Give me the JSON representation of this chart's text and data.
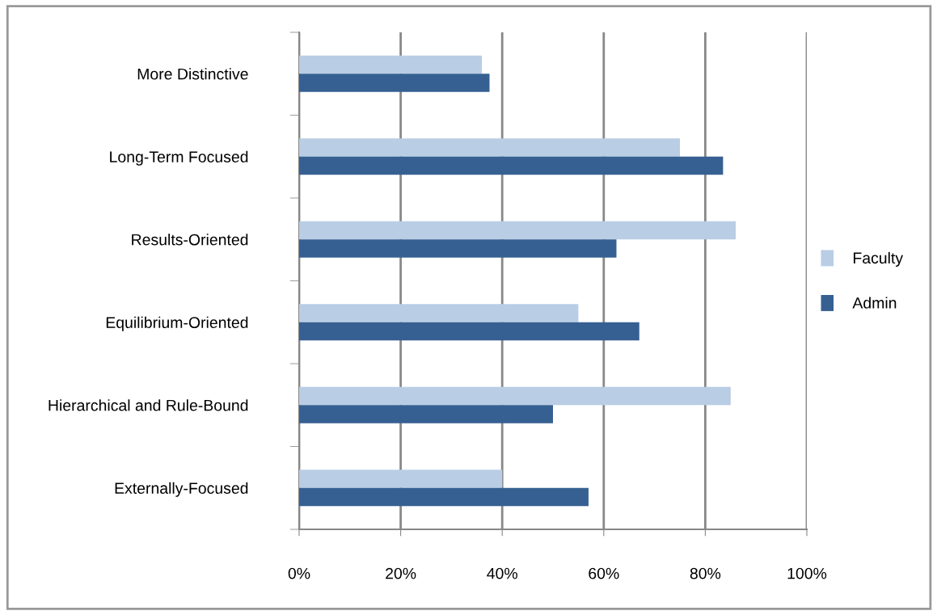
{
  "chart_data": {
    "type": "bar",
    "orientation": "horizontal",
    "categories": [
      "More Distinctive",
      "Long-Term Focused",
      "Results-Oriented",
      "Equilibrium-Oriented",
      "Hierarchical and Rule-Bound",
      "Externally-Focused"
    ],
    "series": [
      {
        "name": "Faculty",
        "color": "#b9cde5",
        "values": [
          36,
          75,
          86,
          55,
          85,
          40
        ]
      },
      {
        "name": "Admin",
        "color": "#376092",
        "values": [
          37.5,
          83.5,
          62.5,
          67,
          50,
          57
        ]
      }
    ],
    "xlim": [
      0,
      100
    ],
    "xticks": [
      {
        "value": 0,
        "label": "0%"
      },
      {
        "value": 20,
        "label": "20%"
      },
      {
        "value": 40,
        "label": "40%"
      },
      {
        "value": 60,
        "label": "60%"
      },
      {
        "value": 80,
        "label": "80%"
      },
      {
        "value": 100,
        "label": "100%"
      }
    ],
    "grid": "x",
    "legend": "right"
  }
}
